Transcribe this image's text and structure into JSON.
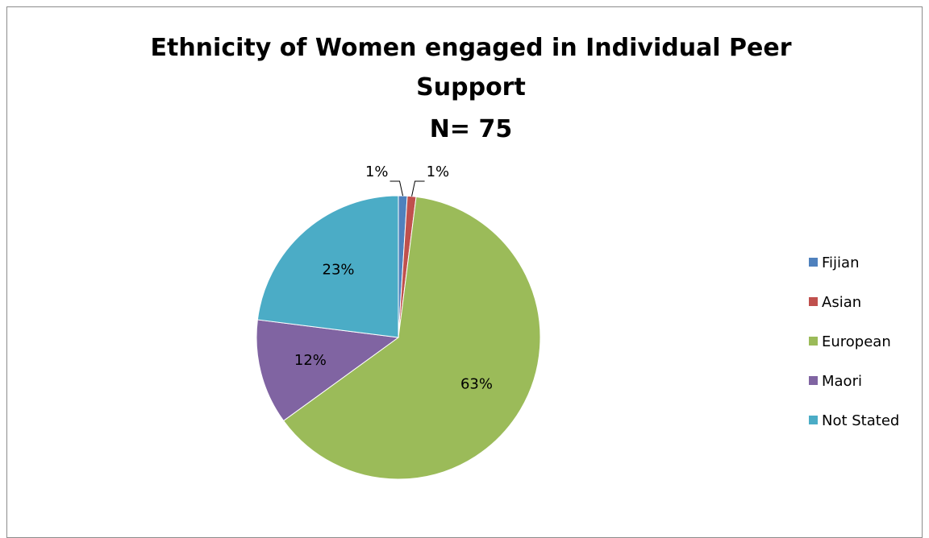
{
  "chart_data": {
    "type": "pie",
    "title_lines": [
      "Ethnicity of Women engaged in Individual Peer",
      "Support",
      "N= 75"
    ],
    "legend_position": "right",
    "slices": [
      {
        "name": "Fijian",
        "percent": 1,
        "label": "1%",
        "color": "#4F81BD"
      },
      {
        "name": "Asian",
        "percent": 1,
        "label": "1%",
        "color": "#C0504D"
      },
      {
        "name": "European",
        "percent": 63,
        "label": "63%",
        "color": "#9BBB59"
      },
      {
        "name": "Maori",
        "percent": 12,
        "label": "12%",
        "color": "#8064A2"
      },
      {
        "name": "Not Stated",
        "percent": 23,
        "label": "23%",
        "color": "#4BACC6"
      }
    ]
  }
}
